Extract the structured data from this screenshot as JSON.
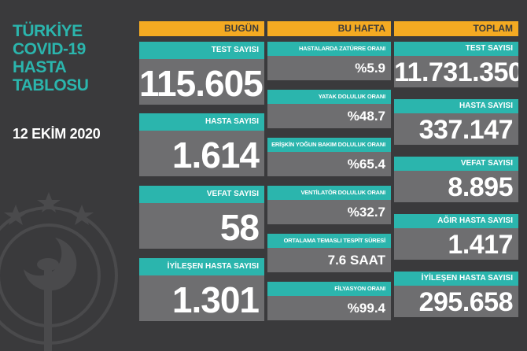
{
  "title": "TÜRKİYE\nCOVID-19\nHASTA\nTABLOSU",
  "date": "12 EKİM 2020",
  "headers": {
    "today": "BUGÜN",
    "week": "BU HAFTA",
    "total": "TOPLAM"
  },
  "today": [
    {
      "label": "TEST SAYISI",
      "value": "115.605"
    },
    {
      "label": "HASTA SAYISI",
      "value": "1.614"
    },
    {
      "label": "VEFAT SAYISI",
      "value": "58"
    },
    {
      "label": "İYİLEŞEN HASTA SAYISI",
      "value": "1.301"
    }
  ],
  "week": [
    {
      "label": "HASTALARDA ZATÜRRE ORANI",
      "value": "%5.9"
    },
    {
      "label": "YATAK DOLULUK ORANI",
      "value": "%48.7"
    },
    {
      "label": "ERİŞKİN YOĞUN BAKIM DOLULUK ORANI",
      "value": "%65.4"
    },
    {
      "label": "VENTİLATÖR DOLULUK ORANI",
      "value": "%32.7"
    },
    {
      "label": "ORTALAMA TEMASLI TESPİT SÜRESİ",
      "value": "7.6 SAAT"
    },
    {
      "label": "FİLYASYON ORANI",
      "value": "%99.4"
    }
  ],
  "total": [
    {
      "label": "TEST SAYISI",
      "value": "11.731.350"
    },
    {
      "label": "HASTA SAYISI",
      "value": "337.147"
    },
    {
      "label": "VEFAT SAYISI",
      "value": "8.895"
    },
    {
      "label": "AĞIR HASTA SAYISI",
      "value": "1.417"
    },
    {
      "label": "İYİLEŞEN HASTA SAYISI",
      "value": "295.658"
    }
  ],
  "colors": {
    "teal": "#2bb5ad",
    "orange": "#f4aa22",
    "panel": "#6e6e70",
    "background": "#3a3a3c"
  }
}
